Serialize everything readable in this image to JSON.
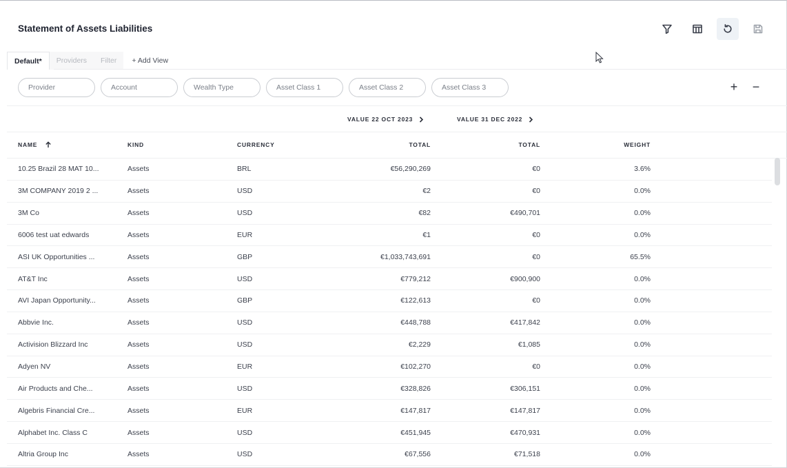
{
  "page": {
    "title": "Statement of Assets Liabilities"
  },
  "toolbar": {
    "buttons": [
      {
        "icon": "filter-icon"
      },
      {
        "icon": "columns-icon"
      },
      {
        "icon": "reset-icon"
      },
      {
        "icon": "save-icon"
      }
    ]
  },
  "tabs": [
    {
      "label": "Default*",
      "active": true
    },
    {
      "label": "Providers"
    },
    {
      "label": "Filter"
    },
    {
      "label": "+ Add View"
    }
  ],
  "filters": [
    "Provider",
    "Account",
    "Wealth Type",
    "Asset Class 1",
    "Asset Class 2",
    "Asset Class 3"
  ],
  "controls": {
    "plus": "+",
    "minus": "−"
  },
  "groups": {
    "value_current": "VALUE 22 OCT 2023",
    "value_prior": "VALUE 31 DEC 2022"
  },
  "columns": {
    "name": "NAME",
    "kind": "KIND",
    "currency": "CURRENCY",
    "total1": "TOTAL",
    "total2": "TOTAL",
    "weight": "WEIGHT"
  },
  "rows": [
    {
      "name": "10.25 Brazil 28 MAT 10...",
      "kind": "Assets",
      "currency": "BRL",
      "total1": "€56,290,269",
      "total2": "€0",
      "weight": "3.6%"
    },
    {
      "name": "3M COMPANY 2019 2 ...",
      "kind": "Assets",
      "currency": "USD",
      "total1": "€2",
      "total2": "€0",
      "weight": "0.0%"
    },
    {
      "name": "3M Co",
      "kind": "Assets",
      "currency": "USD",
      "total1": "€82",
      "total2": "€490,701",
      "weight": "0.0%"
    },
    {
      "name": "6006 test uat edwards",
      "kind": "Assets",
      "currency": "EUR",
      "total1": "€1",
      "total2": "€0",
      "weight": "0.0%"
    },
    {
      "name": "ASI UK Opportunities ...",
      "kind": "Assets",
      "currency": "GBP",
      "total1": "€1,033,743,691",
      "total2": "€0",
      "weight": "65.5%"
    },
    {
      "name": "AT&T Inc",
      "kind": "Assets",
      "currency": "USD",
      "total1": "€779,212",
      "total2": "€900,900",
      "weight": "0.0%"
    },
    {
      "name": "AVI Japan Opportunity...",
      "kind": "Assets",
      "currency": "GBP",
      "total1": "€122,613",
      "total2": "€0",
      "weight": "0.0%"
    },
    {
      "name": "Abbvie Inc.",
      "kind": "Assets",
      "currency": "USD",
      "total1": "€448,788",
      "total2": "€417,842",
      "weight": "0.0%"
    },
    {
      "name": "Activision Blizzard Inc",
      "kind": "Assets",
      "currency": "USD",
      "total1": "€2,229",
      "total2": "€1,085",
      "weight": "0.0%"
    },
    {
      "name": "Adyen NV",
      "kind": "Assets",
      "currency": "EUR",
      "total1": "€102,270",
      "total2": "€0",
      "weight": "0.0%"
    },
    {
      "name": "Air Products and Che...",
      "kind": "Assets",
      "currency": "USD",
      "total1": "€328,826",
      "total2": "€306,151",
      "weight": "0.0%"
    },
    {
      "name": "Algebris Financial Cre...",
      "kind": "Assets",
      "currency": "EUR",
      "total1": "€147,817",
      "total2": "€147,817",
      "weight": "0.0%"
    },
    {
      "name": "Alphabet Inc. Class C",
      "kind": "Assets",
      "currency": "USD",
      "total1": "€451,945",
      "total2": "€470,931",
      "weight": "0.0%"
    },
    {
      "name": "Altria Group Inc",
      "kind": "Assets",
      "currency": "USD",
      "total1": "€67,556",
      "total2": "€71,518",
      "weight": "0.0%"
    }
  ]
}
